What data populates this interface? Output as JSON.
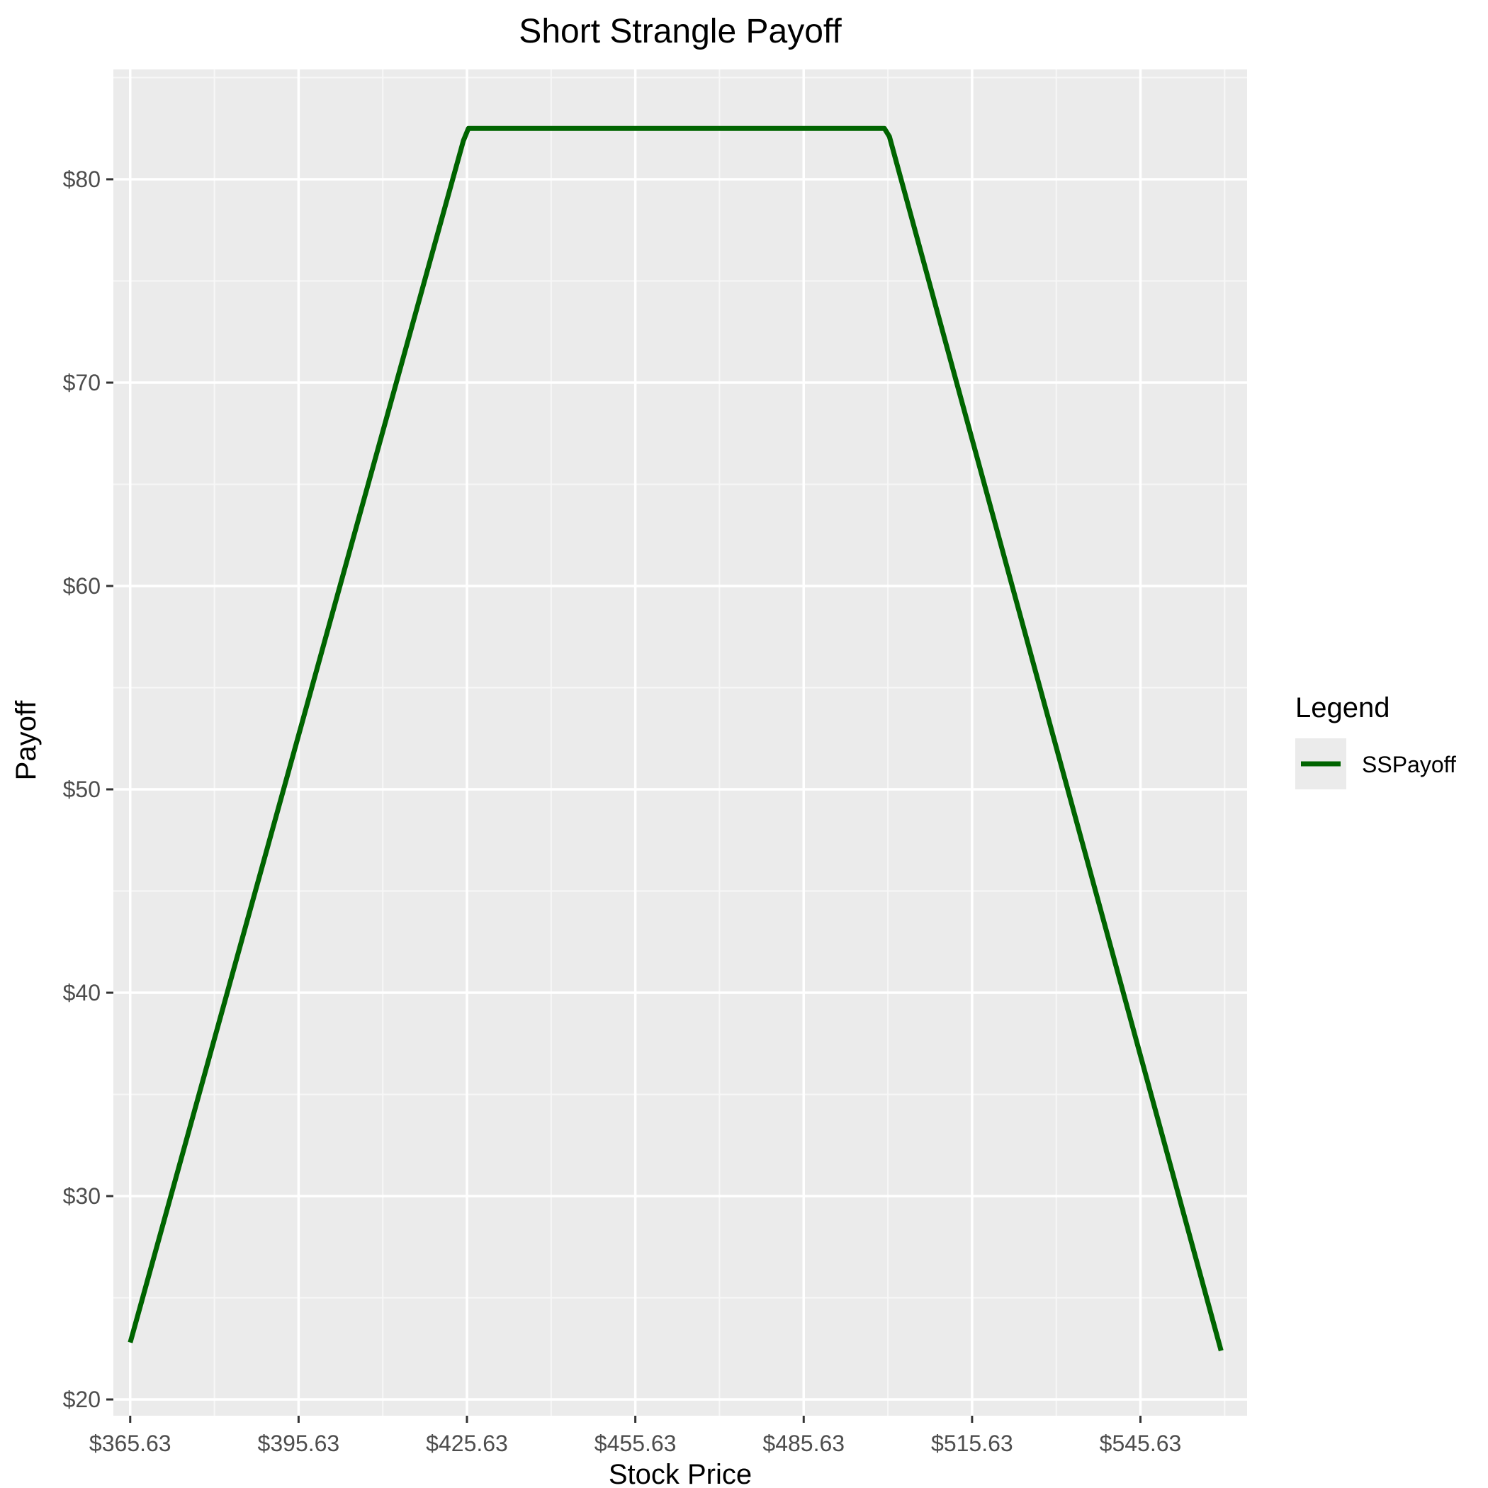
{
  "chart_data": {
    "type": "line",
    "title": "Short Strangle Payoff",
    "xlabel": "Stock Price",
    "ylabel": "Payoff",
    "xlim": [
      362.63,
      564.63
    ],
    "ylim": [
      19.2,
      85.4
    ],
    "x_ticks": [
      365.63,
      395.63,
      425.63,
      455.63,
      485.63,
      515.63,
      545.63
    ],
    "x_tick_labels": [
      "$365.63",
      "$395.63",
      "$425.63",
      "$455.63",
      "$485.63",
      "$515.63",
      "$545.63"
    ],
    "y_ticks": [
      20,
      30,
      40,
      50,
      60,
      70,
      80
    ],
    "y_tick_labels": [
      "$20",
      "$30",
      "$40",
      "$50",
      "$60",
      "$70",
      "$80"
    ],
    "grid": true,
    "legend_title": "Legend",
    "legend_position": "right",
    "series": [
      {
        "name": "SSPayoff",
        "color": "#006400",
        "x": [
          365.63,
          425.0,
          425.9,
          500.0,
          500.9,
          560.0
        ],
        "y": [
          22.8,
          81.9,
          82.5,
          82.5,
          82.1,
          22.4
        ]
      }
    ]
  },
  "colors": {
    "panel_background": "#ebebeb",
    "grid_major": "#ffffff",
    "grid_minor": "#f5f5f5",
    "series_line": "#006400"
  }
}
